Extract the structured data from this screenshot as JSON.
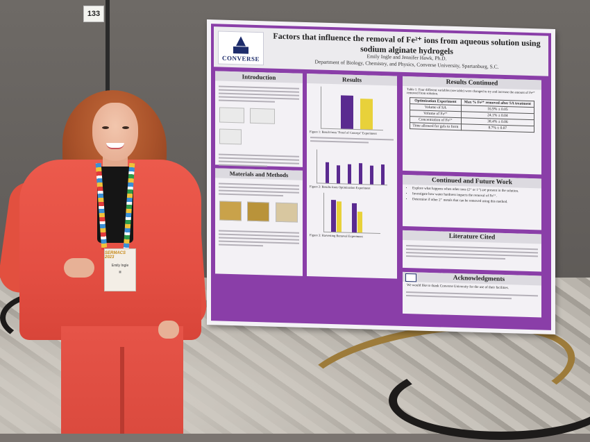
{
  "booth_number": "133",
  "poster": {
    "logo_text": "CONVERSE",
    "title_line1": "Factors that influence the removal of Fe²⁺ ions from aqueous solution using",
    "title_line2": "sodium alginate hydrogels",
    "authors": "Emily Ingle and Jennifer Hawk, Ph.D.",
    "affiliation": "Department of Biology, Chemistry, and Physics, Converse University, Spartanburg, S.C.",
    "sections": {
      "introduction": "Introduction",
      "materials_methods": "Materials and Methods",
      "results": "Results",
      "results_continued": "Results Continued",
      "continued_future_work": "Continued and Future Work",
      "literature_cited": "Literature Cited",
      "acknowledgments": "Acknowledgments"
    },
    "future_work": [
      "Explore what happens when other ions (2⁺ or 1⁺) are present in the solution.",
      "Investigate how water hardness impacts the removal of Fe²⁺.",
      "Determine if other 2⁺ metals that can be removed using this method."
    ],
    "table": {
      "caption": "Table 1: Four different variables (see table) were changed to try and increase the amount of Fe²⁺ removed from solution.",
      "headers": [
        "Optimization Experiment",
        "Max % Fe²⁺ removed after SA treatment"
      ],
      "rows": [
        [
          "Volume of SA",
          "16.9% ± 0.05"
        ],
        [
          "Volume of Fe²⁺",
          "24.1% ± 0.04"
        ],
        [
          "Concentration of Fe²⁺",
          "38.4% ± 0.06"
        ],
        [
          "Time allowed for gels to form",
          "8.7% ± 0.07"
        ]
      ]
    },
    "figure_captions": {
      "fig1": "Figure 1: Result from \"Proof of Concept\" Experiment",
      "fig2": "Figure 2: Results from Optimization Experiment",
      "fig3": "Figure 3: Harvesting Removal Experiment"
    },
    "acknowledgments_text": "We would like to thank Converse University for the use of their facilities."
  },
  "badge": {
    "event": "SERMACS 2023",
    "name": "Emily Ingle"
  },
  "colors": {
    "poster_purple": "#8a3ea8",
    "suit": "#e44f43",
    "bar_purple": "#5a2a90",
    "bar_yellow": "#e8d13a"
  }
}
